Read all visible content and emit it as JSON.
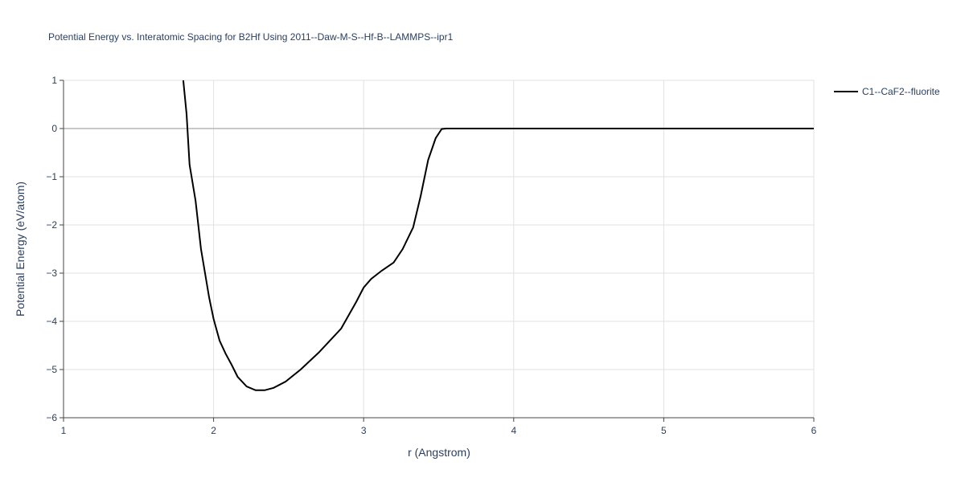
{
  "chart_data": {
    "type": "line",
    "title": "Potential Energy vs. Interatomic Spacing for B2Hf Using 2011--Daw-M-S--Hf-B--LAMMPS--ipr1",
    "x_label": "r (Angstrom)",
    "y_label": "Potential Energy (eV/atom)",
    "x": [
      1.798,
      1.82,
      1.84,
      1.88,
      1.916,
      1.97,
      2.0,
      2.04,
      2.08,
      2.12,
      2.16,
      2.22,
      2.28,
      2.34,
      2.4,
      2.48,
      2.58,
      2.7,
      2.85,
      2.95,
      3.0,
      3.05,
      3.12,
      3.2,
      3.26,
      3.33,
      3.38,
      3.43,
      3.48,
      3.52,
      3.55,
      6.0
    ],
    "series": [
      {
        "name": "C1--CaF2--fluorite",
        "color": "#000000",
        "values": [
          1.0,
          0.3,
          -0.75,
          -1.5,
          -2.5,
          -3.5,
          -3.95,
          -4.4,
          -4.67,
          -4.9,
          -5.15,
          -5.35,
          -5.43,
          -5.43,
          -5.38,
          -5.25,
          -5.0,
          -4.65,
          -4.15,
          -3.6,
          -3.3,
          -3.12,
          -2.95,
          -2.78,
          -2.5,
          -2.05,
          -1.4,
          -0.65,
          -0.2,
          -0.01,
          0,
          0
        ]
      }
    ],
    "xlim": [
      1,
      6
    ],
    "ylim": [
      -6,
      1
    ],
    "xticks": [
      1,
      2,
      3,
      4,
      5,
      6
    ],
    "yticks": [
      1,
      0,
      {
        "value": -1,
        "label": "−1"
      },
      {
        "value": -2,
        "label": "−2"
      },
      {
        "value": -3,
        "label": "−3"
      },
      {
        "value": -4,
        "label": "−4"
      },
      {
        "value": -5,
        "label": "−5"
      },
      {
        "value": -6,
        "label": "−6"
      }
    ],
    "grid": true,
    "legend": "top-right"
  }
}
